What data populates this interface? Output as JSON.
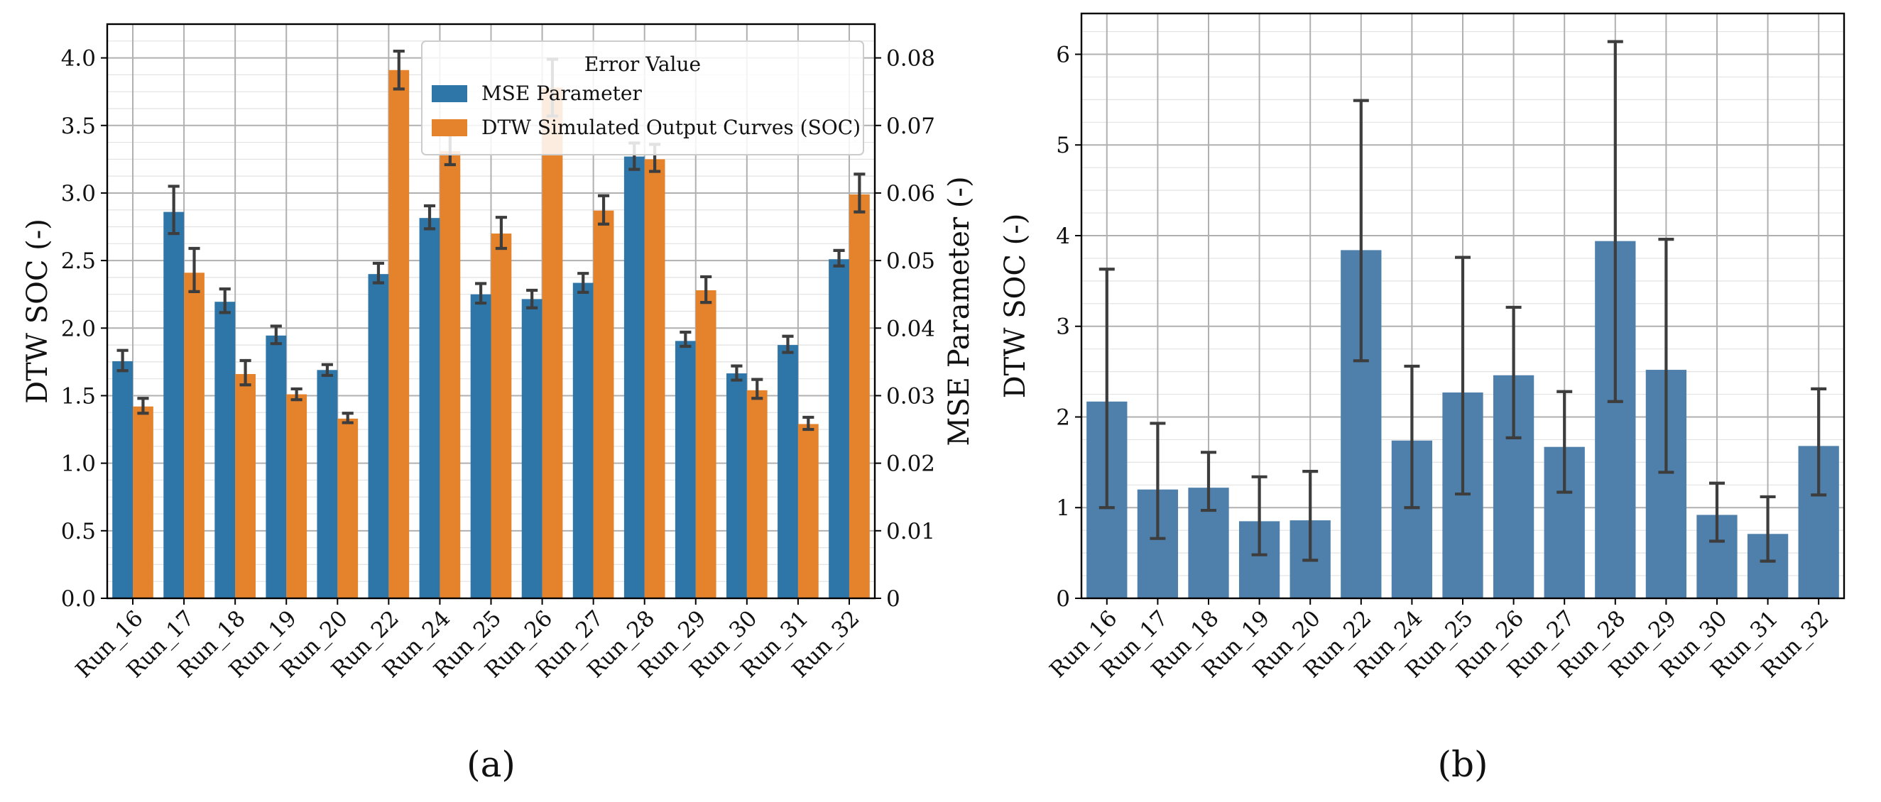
{
  "chart_data": [
    {
      "type": "bar",
      "panel_label": "(a)",
      "categories": [
        "Run_16",
        "Run_17",
        "Run_18",
        "Run_19",
        "Run_20",
        "Run_22",
        "Run_24",
        "Run_25",
        "Run_26",
        "Run_27",
        "Run_28",
        "Run_29",
        "Run_30",
        "Run_31",
        "Run_32"
      ],
      "ylabel": "DTW SOC (-)",
      "ylabel_right": "MSE Parameter (-)",
      "ylim": [
        0,
        4.25
      ],
      "ylim_right": [
        0,
        0.085
      ],
      "yticks": [
        "0.0",
        "0.5",
        "1.0",
        "1.5",
        "2.0",
        "2.5",
        "3.0",
        "3.5",
        "4.0"
      ],
      "yticks_right": [
        "0",
        "0.01",
        "0.02",
        "0.03",
        "0.04",
        "0.05",
        "0.06",
        "0.07",
        "0.08"
      ],
      "legend": {
        "title": "Error Value",
        "placement": "top-right"
      },
      "series": [
        {
          "name": "MSE Parameter",
          "axis": "right",
          "color": "#2f76a8",
          "values": [
            0.0351,
            0.0572,
            0.0439,
            0.0389,
            0.0338,
            0.048,
            0.0563,
            0.045,
            0.0443,
            0.0467,
            0.0654,
            0.0381,
            0.0333,
            0.0375,
            0.0502
          ],
          "err_low": [
            0.0337,
            0.054,
            0.0423,
            0.0377,
            0.033,
            0.0467,
            0.0547,
            0.0437,
            0.043,
            0.0453,
            0.0635,
            0.0373,
            0.0323,
            0.0364,
            0.0492
          ],
          "err_high": [
            0.0367,
            0.061,
            0.0458,
            0.0403,
            0.0346,
            0.0496,
            0.0581,
            0.0466,
            0.0456,
            0.0481,
            0.0674,
            0.0394,
            0.0344,
            0.0388,
            0.0515
          ]
        },
        {
          "name": "DTW Simulated Output Curves (SOC)",
          "axis": "left",
          "color": "#e5832c",
          "values": [
            1.42,
            2.41,
            1.66,
            1.51,
            1.33,
            3.91,
            3.31,
            2.7,
            3.78,
            2.87,
            3.25,
            2.28,
            1.54,
            1.29,
            2.99
          ],
          "err_low": [
            1.37,
            2.27,
            1.58,
            1.47,
            1.3,
            3.77,
            3.21,
            2.59,
            3.57,
            2.77,
            3.16,
            2.19,
            1.48,
            1.25,
            2.86
          ],
          "err_high": [
            1.48,
            2.59,
            1.76,
            1.55,
            1.37,
            4.05,
            3.43,
            2.82,
            3.99,
            2.98,
            3.36,
            2.38,
            1.62,
            1.34,
            3.14
          ]
        }
      ]
    },
    {
      "type": "bar",
      "panel_label": "(b)",
      "categories": [
        "Run_16",
        "Run_17",
        "Run_18",
        "Run_19",
        "Run_20",
        "Run_22",
        "Run_24",
        "Run_25",
        "Run_26",
        "Run_27",
        "Run_28",
        "Run_29",
        "Run_30",
        "Run_31",
        "Run_32"
      ],
      "ylabel": "DTW SOC (-)",
      "ylim": [
        0,
        6.45
      ],
      "yticks": [
        "0",
        "1",
        "2",
        "3",
        "4",
        "5",
        "6"
      ],
      "series": [
        {
          "name": "DTW SOC",
          "color": "#4e80ab",
          "values": [
            2.17,
            1.2,
            1.22,
            0.85,
            0.86,
            3.84,
            1.74,
            2.27,
            2.46,
            1.67,
            3.94,
            2.52,
            0.92,
            0.71,
            1.68
          ],
          "err_low": [
            1.0,
            0.66,
            0.97,
            0.48,
            0.42,
            2.62,
            1.0,
            1.15,
            1.77,
            1.17,
            2.17,
            1.39,
            0.63,
            0.41,
            1.14
          ],
          "err_high": [
            3.63,
            1.93,
            1.61,
            1.34,
            1.4,
            5.49,
            2.56,
            3.76,
            3.21,
            2.28,
            6.14,
            3.96,
            1.27,
            1.12,
            2.31
          ]
        }
      ]
    }
  ]
}
